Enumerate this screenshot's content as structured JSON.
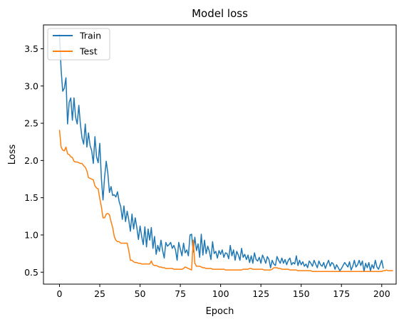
{
  "chart_data": {
    "type": "line",
    "title": "Model loss",
    "xlabel": "Epoch",
    "ylabel": "Loss",
    "xlim": [
      -9.95,
      208.95
    ],
    "ylim": [
      0.34,
      3.82
    ],
    "xticks": [
      0,
      25,
      50,
      75,
      100,
      125,
      150,
      175,
      200
    ],
    "yticks": [
      0.5,
      1.0,
      1.5,
      2.0,
      2.5,
      3.0,
      3.5
    ],
    "ytick_labels": [
      "0.5",
      "1.0",
      "1.5",
      "2.0",
      "2.5",
      "3.0",
      "3.5"
    ],
    "grid": false,
    "legend": {
      "loc": "upper left"
    },
    "series": [
      {
        "name": "Train",
        "color": "#1f77b4",
        "values": [
          3.7,
          3.22,
          2.93,
          2.97,
          3.11,
          2.49,
          2.78,
          2.84,
          2.54,
          2.84,
          2.58,
          2.49,
          2.74,
          2.48,
          2.3,
          2.22,
          2.49,
          2.18,
          2.37,
          2.2,
          2.13,
          1.96,
          2.32,
          2.05,
          1.97,
          2.23,
          1.76,
          1.47,
          1.78,
          1.99,
          1.83,
          1.57,
          1.65,
          1.53,
          1.54,
          1.51,
          1.58,
          1.45,
          1.38,
          1.21,
          1.39,
          1.18,
          1.32,
          1.2,
          1.05,
          1.28,
          1.08,
          1.23,
          1.1,
          0.94,
          1.12,
          0.98,
          0.87,
          1.11,
          0.84,
          1.08,
          0.93,
          1.1,
          0.82,
          0.98,
          0.74,
          0.86,
          0.78,
          0.93,
          0.79,
          0.69,
          0.9,
          0.85,
          0.87,
          0.9,
          0.82,
          0.86,
          0.8,
          0.66,
          0.9,
          0.81,
          0.72,
          0.89,
          0.76,
          0.8,
          0.72,
          1.0,
          1.01,
          0.77,
          0.97,
          0.79,
          0.88,
          0.7,
          1.01,
          0.73,
          0.93,
          0.75,
          0.85,
          0.78,
          0.67,
          0.91,
          0.75,
          0.78,
          0.69,
          0.79,
          0.74,
          0.8,
          0.7,
          0.76,
          0.75,
          0.68,
          0.86,
          0.72,
          0.8,
          0.66,
          0.78,
          0.73,
          0.66,
          0.82,
          0.7,
          0.74,
          0.67,
          0.73,
          0.63,
          0.72,
          0.62,
          0.76,
          0.67,
          0.65,
          0.7,
          0.62,
          0.73,
          0.68,
          0.62,
          0.71,
          0.67,
          0.56,
          0.66,
          0.61,
          0.59,
          0.71,
          0.66,
          0.62,
          0.69,
          0.62,
          0.67,
          0.6,
          0.66,
          0.69,
          0.6,
          0.63,
          0.61,
          0.72,
          0.59,
          0.66,
          0.6,
          0.64,
          0.58,
          0.61,
          0.56,
          0.65,
          0.62,
          0.58,
          0.66,
          0.61,
          0.56,
          0.65,
          0.6,
          0.58,
          0.63,
          0.55,
          0.61,
          0.66,
          0.58,
          0.63,
          0.61,
          0.54,
          0.6,
          0.56,
          0.52,
          0.55,
          0.59,
          0.63,
          0.6,
          0.57,
          0.64,
          0.53,
          0.58,
          0.66,
          0.57,
          0.6,
          0.66,
          0.59,
          0.65,
          0.51,
          0.62,
          0.56,
          0.63,
          0.52,
          0.6,
          0.55,
          0.66,
          0.57,
          0.54,
          0.6,
          0.66,
          0.55
        ]
      },
      {
        "name": "Test",
        "color": "#ff7f0e",
        "values": [
          2.41,
          2.18,
          2.14,
          2.13,
          2.18,
          2.09,
          2.08,
          2.05,
          2.04,
          1.99,
          1.98,
          1.98,
          1.97,
          1.96,
          1.96,
          1.93,
          1.91,
          1.86,
          1.77,
          1.76,
          1.75,
          1.74,
          1.66,
          1.63,
          1.62,
          1.49,
          1.38,
          1.23,
          1.23,
          1.28,
          1.29,
          1.27,
          1.18,
          1.1,
          0.98,
          0.93,
          0.91,
          0.91,
          0.89,
          0.89,
          0.89,
          0.89,
          0.89,
          0.79,
          0.66,
          0.66,
          0.64,
          0.63,
          0.63,
          0.62,
          0.62,
          0.61,
          0.61,
          0.61,
          0.61,
          0.61,
          0.61,
          0.65,
          0.6,
          0.59,
          0.59,
          0.58,
          0.57,
          0.57,
          0.56,
          0.56,
          0.55,
          0.55,
          0.55,
          0.55,
          0.55,
          0.54,
          0.54,
          0.54,
          0.54,
          0.54,
          0.54,
          0.55,
          0.57,
          0.56,
          0.55,
          0.54,
          0.53,
          0.93,
          0.62,
          0.58,
          0.58,
          0.58,
          0.57,
          0.56,
          0.56,
          0.55,
          0.55,
          0.55,
          0.55,
          0.54,
          0.54,
          0.54,
          0.54,
          0.54,
          0.54,
          0.54,
          0.54,
          0.53,
          0.53,
          0.53,
          0.53,
          0.53,
          0.53,
          0.53,
          0.53,
          0.53,
          0.53,
          0.53,
          0.54,
          0.54,
          0.54,
          0.54,
          0.55,
          0.55,
          0.54,
          0.54,
          0.54,
          0.54,
          0.54,
          0.54,
          0.54,
          0.53,
          0.53,
          0.53,
          0.53,
          0.53,
          0.54,
          0.56,
          0.56,
          0.56,
          0.55,
          0.55,
          0.54,
          0.54,
          0.54,
          0.54,
          0.54,
          0.53,
          0.53,
          0.53,
          0.53,
          0.53,
          0.52,
          0.52,
          0.52,
          0.52,
          0.52,
          0.52,
          0.52,
          0.52,
          0.52,
          0.51,
          0.51,
          0.51,
          0.51,
          0.51,
          0.51,
          0.51,
          0.51,
          0.51,
          0.51,
          0.51,
          0.51,
          0.51,
          0.51,
          0.51,
          0.51,
          0.51,
          0.51,
          0.51,
          0.51,
          0.51,
          0.51,
          0.51,
          0.51,
          0.51,
          0.51,
          0.51,
          0.51,
          0.51,
          0.51,
          0.51,
          0.51,
          0.51,
          0.51,
          0.51,
          0.51,
          0.51,
          0.51,
          0.51,
          0.51,
          0.51,
          0.51,
          0.51,
          0.51,
          0.52,
          0.52,
          0.53,
          0.52,
          0.52,
          0.52,
          0.52
        ]
      }
    ]
  }
}
